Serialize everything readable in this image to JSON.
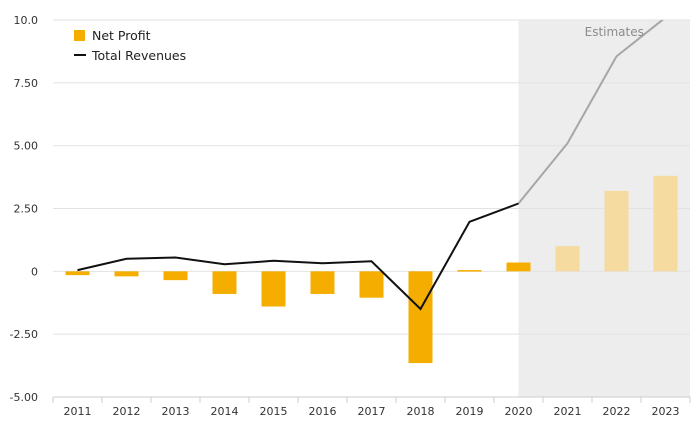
{
  "chart_data": {
    "type": "bar",
    "categories": [
      "2011",
      "2012",
      "2013",
      "2014",
      "2015",
      "2016",
      "2017",
      "2018",
      "2019",
      "2020",
      "2021",
      "2022",
      "2023"
    ],
    "series": [
      {
        "name": "Net Profit",
        "kind": "bar",
        "color": "#f5ad00",
        "estimate_color": "#f5dba0",
        "values": [
          -0.15,
          -0.2,
          -0.35,
          -0.9,
          -1.4,
          -0.9,
          -1.05,
          -3.65,
          0.05,
          0.35,
          1.0,
          3.2,
          3.8
        ]
      },
      {
        "name": "Total Revenues",
        "kind": "line",
        "color": "#111111",
        "estimate_color": "#a6a6a6",
        "values": [
          0.05,
          0.5,
          0.55,
          0.28,
          0.42,
          0.32,
          0.4,
          -1.5,
          1.97,
          2.7,
          5.1,
          8.55,
          10.1
        ]
      }
    ],
    "estimates_from": "2020",
    "estimates_label": "Estimates",
    "ylim": [
      -5.0,
      10.0
    ],
    "yticks": [
      "10.0",
      "7.50",
      "5.00",
      "2.50",
      "0",
      "-2.50",
      "-5.00"
    ],
    "ytick_values": [
      10,
      7.5,
      5,
      2.5,
      0,
      -2.5,
      -5
    ],
    "grid": true,
    "legend_position": "top-left",
    "title": "",
    "xlabel": "",
    "ylabel": ""
  }
}
